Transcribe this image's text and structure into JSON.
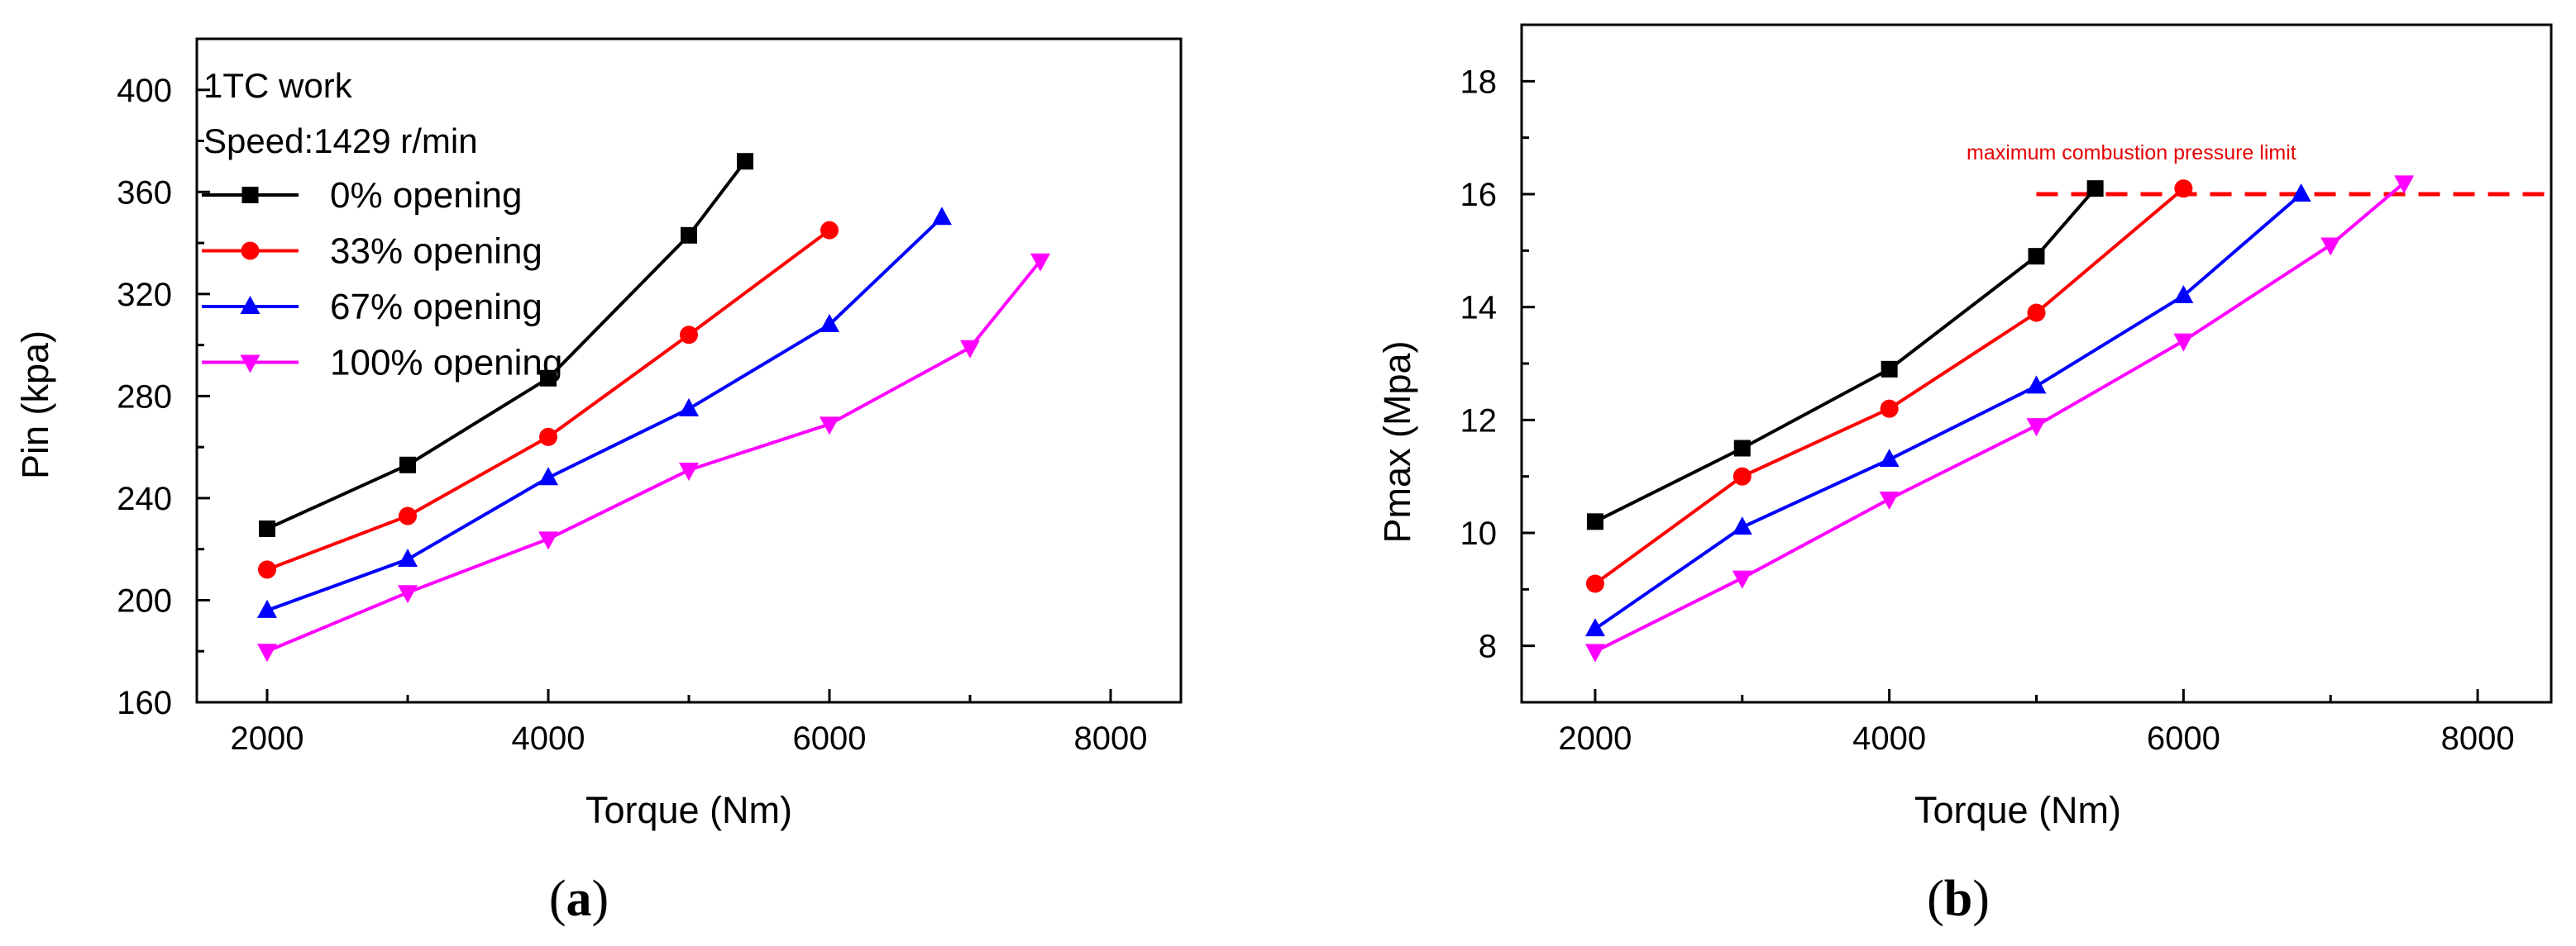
{
  "chart_data": [
    {
      "type": "line",
      "panel": "(a)",
      "panel_label_letter": "a",
      "xlabel": "Torque (Nm)",
      "ylabel": "Pin (kpa)",
      "xlim": [
        1500,
        8500
      ],
      "ylim": [
        160,
        420
      ],
      "xticks": [
        2000,
        4000,
        6000,
        8000
      ],
      "yticks": [
        160,
        200,
        240,
        280,
        320,
        360,
        400
      ],
      "grid": false,
      "annotations": [
        "1TC work",
        "Speed:1429 r/min"
      ],
      "legend_position": "top-left",
      "series": [
        {
          "name": "0% opening",
          "color": "#000000",
          "marker": "square",
          "x": [
            2000,
            3000,
            4000,
            5000,
            5400
          ],
          "y": [
            228,
            253,
            287,
            343,
            372
          ]
        },
        {
          "name": "33% opening",
          "color": "#ff0000",
          "marker": "circle",
          "x": [
            2000,
            3000,
            4000,
            5000,
            6000
          ],
          "y": [
            212,
            233,
            264,
            304,
            345
          ]
        },
        {
          "name": "67% opening",
          "color": "#0000ff",
          "marker": "triangle-up",
          "x": [
            2000,
            3000,
            4000,
            5000,
            6000,
            6800
          ],
          "y": [
            196,
            216,
            248,
            275,
            308,
            350
          ]
        },
        {
          "name": "100% opening",
          "color": "#ff00ff",
          "marker": "triangle-down",
          "x": [
            2000,
            3000,
            4000,
            5000,
            6000,
            7000,
            7500
          ],
          "y": [
            180,
            203,
            224,
            251,
            269,
            299,
            333
          ]
        }
      ]
    },
    {
      "type": "line",
      "panel": "(b)",
      "panel_label_letter": "b",
      "xlabel": "Torque (Nm)",
      "ylabel": "Pmax (Mpa)",
      "xlim": [
        1500,
        8500
      ],
      "ylim": [
        7,
        19
      ],
      "xticks": [
        2000,
        4000,
        6000,
        8000
      ],
      "yticks": [
        8,
        10,
        12,
        14,
        16,
        18
      ],
      "grid": false,
      "reference_line": {
        "y": 16,
        "x_from": 5000,
        "x_to": 8500,
        "color": "#ff0000",
        "style": "dashed",
        "label": "maximum combustion pressure limit"
      },
      "series": [
        {
          "name": "0% opening",
          "color": "#000000",
          "marker": "square",
          "x": [
            2000,
            3000,
            4000,
            5000,
            5400
          ],
          "y": [
            10.2,
            11.5,
            12.9,
            14.9,
            16.1
          ]
        },
        {
          "name": "33% opening",
          "color": "#ff0000",
          "marker": "circle",
          "x": [
            2000,
            3000,
            4000,
            5000,
            6000
          ],
          "y": [
            9.1,
            11.0,
            12.2,
            13.9,
            16.1
          ]
        },
        {
          "name": "67% opening",
          "color": "#0000ff",
          "marker": "triangle-up",
          "x": [
            2000,
            3000,
            4000,
            5000,
            6000,
            6800
          ],
          "y": [
            8.3,
            10.1,
            11.3,
            12.6,
            14.2,
            16.0
          ]
        },
        {
          "name": "100% opening",
          "color": "#ff00ff",
          "marker": "triangle-down",
          "x": [
            2000,
            3000,
            4000,
            5000,
            6000,
            7000,
            7500
          ],
          "y": [
            7.9,
            9.2,
            10.6,
            11.9,
            13.4,
            15.1,
            16.2
          ]
        }
      ]
    }
  ]
}
